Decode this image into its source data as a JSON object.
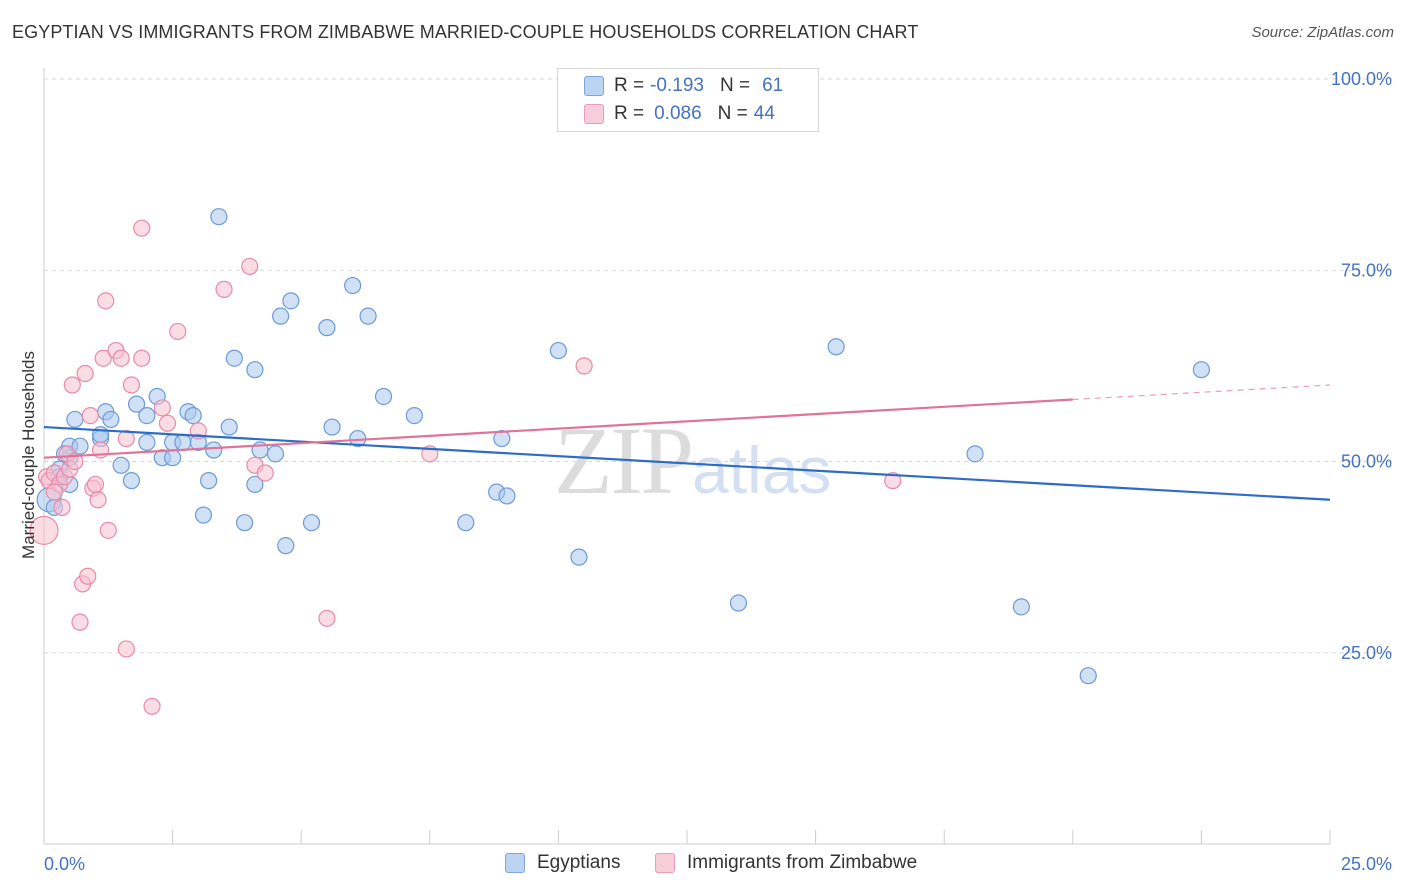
{
  "header": {
    "title": "EGYPTIAN VS IMMIGRANTS FROM ZIMBABWE MARRIED-COUPLE HOUSEHOLDS CORRELATION CHART",
    "source": "Source: ZipAtlas.com"
  },
  "legend_top": {
    "rows": [
      {
        "r_label": "R =",
        "r_value": "-0.193",
        "n_label": "N =",
        "n_value": "61"
      },
      {
        "r_label": "R =",
        "r_value": "0.086",
        "n_label": "N =",
        "n_value": "44"
      }
    ]
  },
  "legend_bottom": {
    "items": [
      "Egyptians",
      "Immigrants from Zimbabwe"
    ]
  },
  "watermark": {
    "big": "ZIP",
    "small": "atlas"
  },
  "colors": {
    "blue_fill": "#aac8ee",
    "blue_stroke": "#6c9ad8",
    "blue_line": "#2d6cc8",
    "pink_fill": "#f5bfd0",
    "pink_stroke": "#e88aa8",
    "pink_line": "#e07398",
    "tick_text": "#4472c4",
    "grid": "#d9d9d9"
  },
  "chart_data": {
    "type": "scatter",
    "title": "EGYPTIAN VS IMMIGRANTS FROM ZIMBABWE MARRIED-COUPLE HOUSEHOLDS CORRELATION CHART",
    "xlabel": "",
    "ylabel": "Married-couple Households",
    "xlim": [
      0,
      25
    ],
    "ylim": [
      0,
      105
    ],
    "x_tick_labels": [
      "0.0%",
      "25.0%"
    ],
    "y_ticks": [
      25,
      50,
      75,
      100
    ],
    "y_tick_labels": [
      "25.0%",
      "50.0%",
      "75.0%",
      "100.0%"
    ],
    "grid": "horizontal dashed",
    "legend_position": "top-center and bottom",
    "series": [
      {
        "name": "Egyptians",
        "color": "#aac8ee",
        "trend": {
          "x": [
            0,
            25
          ],
          "y": [
            54.5,
            45.0
          ],
          "dashed_from": null
        },
        "points": [
          [
            0.1,
            45.0
          ],
          [
            0.2,
            44.0
          ],
          [
            0.3,
            49.0
          ],
          [
            0.5,
            52.0
          ],
          [
            0.5,
            47.0
          ],
          [
            0.5,
            50.5
          ],
          [
            0.6,
            55.5
          ],
          [
            1.1,
            53.0
          ],
          [
            1.2,
            56.5
          ],
          [
            1.3,
            55.5
          ],
          [
            1.5,
            49.5
          ],
          [
            1.7,
            47.5
          ],
          [
            1.8,
            57.5
          ],
          [
            2.0,
            52.5
          ],
          [
            2.2,
            58.5
          ],
          [
            2.3,
            50.5
          ],
          [
            2.5,
            50.5
          ],
          [
            2.5,
            52.5
          ],
          [
            2.7,
            52.5
          ],
          [
            2.8,
            56.5
          ],
          [
            2.9,
            56.0
          ],
          [
            3.0,
            52.5
          ],
          [
            3.1,
            43.0
          ],
          [
            3.2,
            47.5
          ],
          [
            3.3,
            51.5
          ],
          [
            3.4,
            82.0
          ],
          [
            3.6,
            54.5
          ],
          [
            3.7,
            63.5
          ],
          [
            3.9,
            42.0
          ],
          [
            4.1,
            47.0
          ],
          [
            4.1,
            62.0
          ],
          [
            4.2,
            51.5
          ],
          [
            4.5,
            51.0
          ],
          [
            4.6,
            69.0
          ],
          [
            4.7,
            39.0
          ],
          [
            4.8,
            71.0
          ],
          [
            5.2,
            42.0
          ],
          [
            5.5,
            67.5
          ],
          [
            5.6,
            54.5
          ],
          [
            6.0,
            73.0
          ],
          [
            6.1,
            53.0
          ],
          [
            6.3,
            69.0
          ],
          [
            6.6,
            58.5
          ],
          [
            7.2,
            56.0
          ],
          [
            8.2,
            42.0
          ],
          [
            8.8,
            46.0
          ],
          [
            8.9,
            53.0
          ],
          [
            9.0,
            45.5
          ],
          [
            10.0,
            64.5
          ],
          [
            10.4,
            37.5
          ],
          [
            13.5,
            31.5
          ],
          [
            15.4,
            65.0
          ],
          [
            18.1,
            51.0
          ],
          [
            19.0,
            31.0
          ],
          [
            20.3,
            22.0
          ],
          [
            22.5,
            62.0
          ],
          [
            0.3,
            48.0
          ],
          [
            0.7,
            52.0
          ],
          [
            1.1,
            53.5
          ],
          [
            2.0,
            56.0
          ],
          [
            0.4,
            51.0
          ]
        ]
      },
      {
        "name": "Immigrants from Zimbabwe",
        "color": "#f5bfd0",
        "trend": {
          "x": [
            0,
            25
          ],
          "y": [
            50.5,
            60.0
          ],
          "dashed_from": 20.0
        },
        "points": [
          [
            0.0,
            41.0
          ],
          [
            0.05,
            48.0
          ],
          [
            0.1,
            47.5
          ],
          [
            0.2,
            48.5
          ],
          [
            0.3,
            47.0
          ],
          [
            0.35,
            44.0
          ],
          [
            0.4,
            48.0
          ],
          [
            0.45,
            51.0
          ],
          [
            0.5,
            49.0
          ],
          [
            0.55,
            60.0
          ],
          [
            0.6,
            50.0
          ],
          [
            0.7,
            29.0
          ],
          [
            0.75,
            34.0
          ],
          [
            0.8,
            61.5
          ],
          [
            0.85,
            35.0
          ],
          [
            0.9,
            56.0
          ],
          [
            0.95,
            46.5
          ],
          [
            1.0,
            47.0
          ],
          [
            1.05,
            45.0
          ],
          [
            1.1,
            51.5
          ],
          [
            1.15,
            63.5
          ],
          [
            1.2,
            71.0
          ],
          [
            1.25,
            41.0
          ],
          [
            1.4,
            64.5
          ],
          [
            1.5,
            63.5
          ],
          [
            1.6,
            53.0
          ],
          [
            1.6,
            25.5
          ],
          [
            1.7,
            60.0
          ],
          [
            1.9,
            80.5
          ],
          [
            1.9,
            63.5
          ],
          [
            2.1,
            18.0
          ],
          [
            2.3,
            57.0
          ],
          [
            2.4,
            55.0
          ],
          [
            2.6,
            67.0
          ],
          [
            3.0,
            54.0
          ],
          [
            3.5,
            72.5
          ],
          [
            4.0,
            75.5
          ],
          [
            4.1,
            49.5
          ],
          [
            4.3,
            48.5
          ],
          [
            5.5,
            29.5
          ],
          [
            7.5,
            51.0
          ],
          [
            10.5,
            62.5
          ],
          [
            16.5,
            47.5
          ],
          [
            0.2,
            46.0
          ]
        ]
      }
    ]
  }
}
